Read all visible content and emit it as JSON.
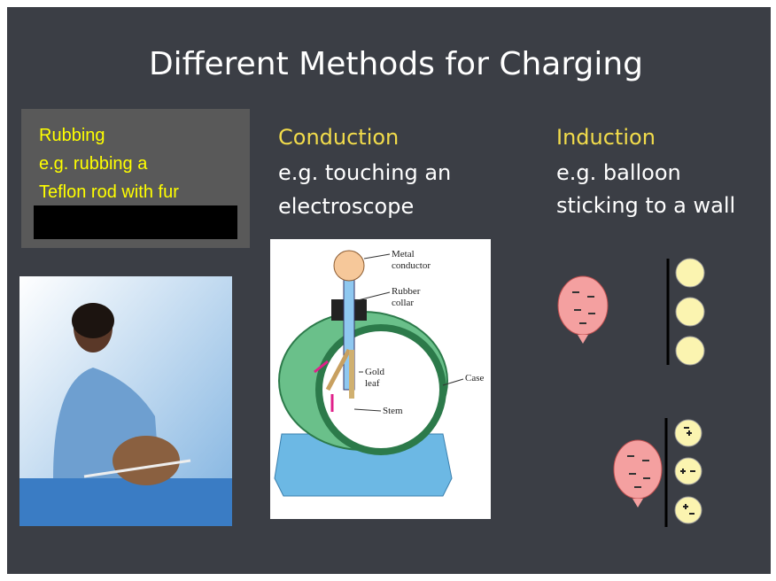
{
  "title": "Different Methods for Charging",
  "rubbing": {
    "heading": "Rubbing",
    "lines": [
      "e.g. rubbing a",
      "Teflon rod with fur"
    ]
  },
  "conduction": {
    "heading": "Conduction",
    "lines": [
      "e.g. touching an",
      "electroscope"
    ]
  },
  "induction": {
    "heading": "Induction",
    "lines": [
      "e.g. balloon",
      "sticking to a wall"
    ]
  },
  "electroscope": {
    "metal": [
      "Metal",
      "conductor"
    ],
    "rubber": [
      "Rubber",
      "collar"
    ],
    "gold": [
      "Gold",
      "leaf"
    ],
    "case": "Case",
    "stem": "Stem"
  }
}
